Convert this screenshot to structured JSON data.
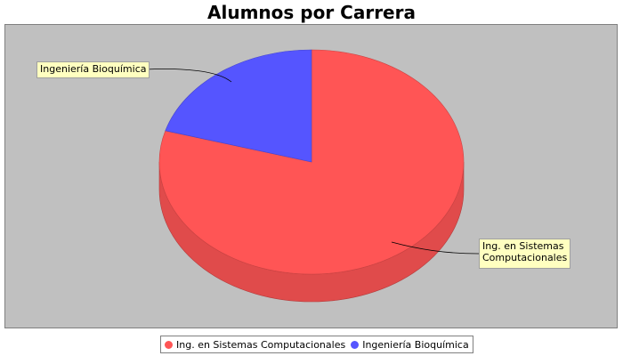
{
  "chart_data": {
    "type": "pie",
    "title": "Alumnos por Carrera",
    "slices": [
      {
        "label": "Ing. en Sistemas Computacionales",
        "value": 79.5,
        "color": "#ff5555"
      },
      {
        "label": "Ingeniería Bioquímica",
        "value": 20.5,
        "color": "#5555ff"
      }
    ],
    "legend_position": "bottom",
    "style": "3d"
  },
  "labels": {
    "sistemas_line1": "Ing. en Sistemas",
    "sistemas_line2": "Computacionales",
    "bioquimica": "Ingeniería Bioquímica"
  },
  "colors": {
    "plot_background": "#c0c0c0",
    "label_background": "#ffffc0"
  }
}
